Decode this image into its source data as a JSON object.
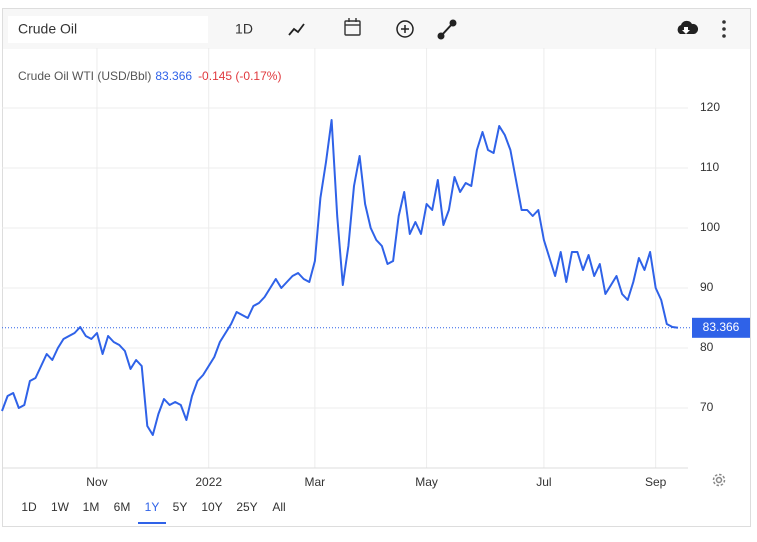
{
  "toolbar": {
    "search": "Crude Oil",
    "interval": "1D"
  },
  "ranges": [
    "1D",
    "1W",
    "1M",
    "6M",
    "1Y",
    "5Y",
    "10Y",
    "25Y",
    "All"
  ],
  "selected_range": 4,
  "chart_data": {
    "type": "line",
    "series": [
      {
        "name": "Crude Oil WTI (USD/Bbl)",
        "color": "#2f62e8",
        "values": [
          69.5,
          72,
          72.5,
          70,
          70.5,
          74.5,
          75,
          77,
          79,
          78,
          80,
          81.5,
          82,
          82.5,
          83.5,
          82,
          81.5,
          82.5,
          79,
          82,
          81,
          80.5,
          79.5,
          76.5,
          78,
          77,
          67,
          65.5,
          69,
          71.5,
          70.5,
          71,
          70.5,
          68,
          72,
          74.5,
          75.5,
          77,
          78.5,
          81,
          82.5,
          84,
          86,
          85.5,
          85,
          87,
          87.5,
          88.5,
          90,
          91.5,
          90,
          91,
          92,
          92.5,
          91.5,
          91,
          94.5,
          105,
          111,
          118,
          102,
          90.5,
          97,
          107,
          112,
          104,
          100,
          98,
          97,
          94,
          94.5,
          102,
          106,
          99,
          101,
          99,
          104,
          103,
          108,
          100.5,
          103,
          108.5,
          106,
          107.5,
          107,
          113,
          116,
          113,
          112.5,
          117,
          115.5,
          113,
          108,
          103,
          103,
          102,
          103,
          98,
          95,
          92,
          96,
          91,
          96,
          96,
          93,
          95.5,
          92,
          94,
          89,
          90.5,
          92,
          89,
          88,
          91,
          95,
          93,
          96,
          90,
          88,
          84,
          83.5,
          83.366
        ]
      }
    ],
    "categories": [
      null,
      null,
      null,
      null,
      null,
      null,
      null,
      null,
      null,
      null,
      null,
      null,
      null,
      null,
      null,
      null,
      null,
      "Nov",
      null,
      null,
      null,
      null,
      null,
      null,
      null,
      null,
      null,
      null,
      null,
      null,
      null,
      null,
      null,
      null,
      null,
      null,
      null,
      "2022",
      null,
      null,
      null,
      null,
      null,
      null,
      null,
      null,
      null,
      null,
      null,
      null,
      null,
      null,
      null,
      null,
      null,
      null,
      "Mar",
      null,
      null,
      null,
      null,
      null,
      null,
      null,
      null,
      null,
      null,
      null,
      null,
      null,
      null,
      null,
      null,
      null,
      null,
      null,
      "May",
      null,
      null,
      null,
      null,
      null,
      null,
      null,
      null,
      null,
      null,
      null,
      null,
      null,
      null,
      null,
      null,
      null,
      null,
      null,
      null,
      "Jul",
      null,
      null,
      null,
      null,
      null,
      null,
      null,
      null,
      null,
      null,
      null,
      null,
      null,
      null,
      null,
      null,
      null,
      null,
      null,
      "Sep",
      null,
      null,
      null,
      null
    ],
    "last_price": 83.366,
    "change": "-0.145 (-0.17%)",
    "change_color": "#e0393e",
    "ylim": [
      60,
      130
    ],
    "yticks": [
      70,
      80,
      90,
      100,
      110,
      120
    ],
    "grid": true
  }
}
